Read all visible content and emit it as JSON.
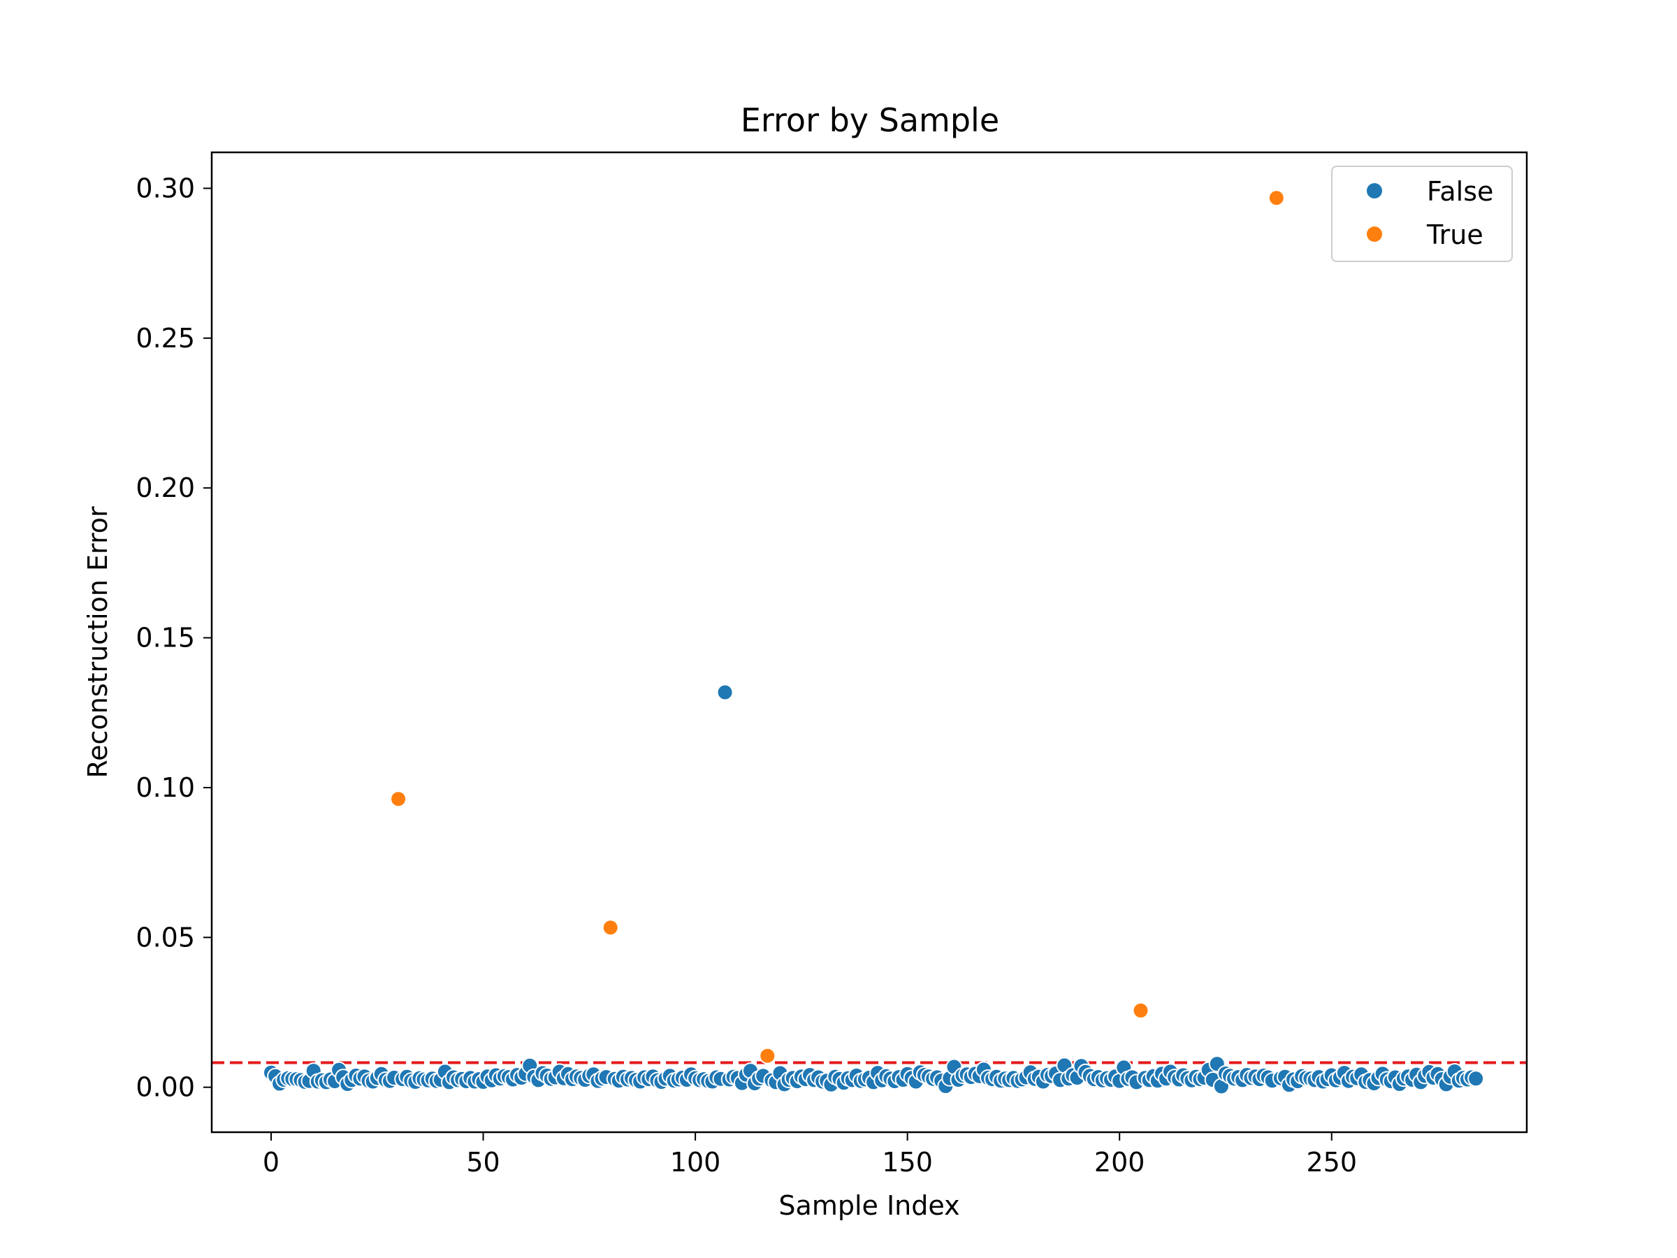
{
  "chart_data": {
    "type": "scatter",
    "title": "Error by Sample",
    "xlabel": "Sample Index",
    "ylabel": "Reconstruction Error",
    "xlim": [
      -14,
      296
    ],
    "ylim": [
      -0.015,
      0.312
    ],
    "x_ticks": [
      0,
      50,
      100,
      150,
      200,
      250
    ],
    "x_tick_labels": [
      "0",
      "50",
      "100",
      "150",
      "200",
      "250"
    ],
    "y_ticks": [
      0.0,
      0.05,
      0.1,
      0.15,
      0.2,
      0.25,
      0.3
    ],
    "y_tick_labels": [
      "0.00",
      "0.05",
      "0.10",
      "0.15",
      "0.20",
      "0.25",
      "0.30"
    ],
    "threshold": {
      "value": 0.0082,
      "color": "#e41a1c",
      "style": "dashed"
    },
    "legend": {
      "position": "top-right"
    },
    "grid": false,
    "series": [
      {
        "name": "False",
        "color": "#1f77b4",
        "points": [
          [
            0,
            0.0049
          ],
          [
            1,
            0.0037
          ],
          [
            2,
            0.0012
          ],
          [
            3,
            0.0025
          ],
          [
            4,
            0.003
          ],
          [
            5,
            0.0028
          ],
          [
            6,
            0.0027
          ],
          [
            7,
            0.0024
          ],
          [
            8,
            0.0018
          ],
          [
            9,
            0.0021
          ],
          [
            10,
            0.0055
          ],
          [
            11,
            0.0019
          ],
          [
            12,
            0.0023
          ],
          [
            13,
            0.0017
          ],
          [
            14,
            0.0026
          ],
          [
            15,
            0.002
          ],
          [
            16,
            0.0058
          ],
          [
            17,
            0.0034
          ],
          [
            18,
            0.0011
          ],
          [
            19,
            0.0024
          ],
          [
            20,
            0.0039
          ],
          [
            21,
            0.0029
          ],
          [
            22,
            0.0036
          ],
          [
            23,
            0.0022
          ],
          [
            24,
            0.0019
          ],
          [
            25,
            0.0031
          ],
          [
            26,
            0.0044
          ],
          [
            27,
            0.0025
          ],
          [
            28,
            0.0021
          ],
          [
            29,
            0.0032
          ],
          [
            31,
            0.0027
          ],
          [
            32,
            0.0035
          ],
          [
            33,
            0.0022
          ],
          [
            34,
            0.0018
          ],
          [
            35,
            0.003
          ],
          [
            36,
            0.0026
          ],
          [
            37,
            0.0023
          ],
          [
            38,
            0.0029
          ],
          [
            39,
            0.0021
          ],
          [
            40,
            0.0025
          ],
          [
            41,
            0.0052
          ],
          [
            42,
            0.0017
          ],
          [
            43,
            0.0033
          ],
          [
            44,
            0.0024
          ],
          [
            45,
            0.0028
          ],
          [
            46,
            0.002
          ],
          [
            47,
            0.0031
          ],
          [
            48,
            0.0019
          ],
          [
            49,
            0.0027
          ],
          [
            50,
            0.0018
          ],
          [
            51,
            0.0036
          ],
          [
            52,
            0.0023
          ],
          [
            53,
            0.004
          ],
          [
            54,
            0.0029
          ],
          [
            55,
            0.0037
          ],
          [
            56,
            0.0034
          ],
          [
            57,
            0.0026
          ],
          [
            58,
            0.0041
          ],
          [
            59,
            0.0032
          ],
          [
            60,
            0.0045
          ],
          [
            61,
            0.0072
          ],
          [
            62,
            0.0035
          ],
          [
            63,
            0.0024
          ],
          [
            64,
            0.0047
          ],
          [
            65,
            0.0039
          ],
          [
            66,
            0.0028
          ],
          [
            67,
            0.0033
          ],
          [
            68,
            0.0052
          ],
          [
            69,
            0.003
          ],
          [
            70,
            0.0044
          ],
          [
            71,
            0.0027
          ],
          [
            72,
            0.0036
          ],
          [
            73,
            0.0031
          ],
          [
            74,
            0.0025
          ],
          [
            75,
            0.0038
          ],
          [
            76,
            0.0043
          ],
          [
            77,
            0.0021
          ],
          [
            78,
            0.0029
          ],
          [
            79,
            0.0034
          ],
          [
            81,
            0.0028
          ],
          [
            82,
            0.0022
          ],
          [
            83,
            0.0035
          ],
          [
            84,
            0.0026
          ],
          [
            85,
            0.0031
          ],
          [
            86,
            0.0024
          ],
          [
            87,
            0.0019
          ],
          [
            88,
            0.0033
          ],
          [
            89,
            0.0027
          ],
          [
            90,
            0.0036
          ],
          [
            91,
            0.0023
          ],
          [
            92,
            0.0018
          ],
          [
            93,
            0.0029
          ],
          [
            94,
            0.0038
          ],
          [
            95,
            0.0022
          ],
          [
            96,
            0.0026
          ],
          [
            97,
            0.0032
          ],
          [
            98,
            0.0025
          ],
          [
            99,
            0.0043
          ],
          [
            100,
            0.003
          ],
          [
            101,
            0.0024
          ],
          [
            102,
            0.0027
          ],
          [
            103,
            0.0021
          ],
          [
            104,
            0.0019
          ],
          [
            105,
            0.0033
          ],
          [
            106,
            0.0028
          ],
          [
            107,
            0.1318
          ],
          [
            108,
            0.0026
          ],
          [
            109,
            0.0035
          ],
          [
            110,
            0.0031
          ],
          [
            111,
            0.0014
          ],
          [
            112,
            0.0042
          ],
          [
            113,
            0.0055
          ],
          [
            114,
            0.0013
          ],
          [
            115,
            0.0029
          ],
          [
            116,
            0.0038
          ],
          [
            118,
            0.0023
          ],
          [
            119,
            0.0017
          ],
          [
            120,
            0.0047
          ],
          [
            121,
            0.001
          ],
          [
            122,
            0.0025
          ],
          [
            123,
            0.0031
          ],
          [
            124,
            0.002
          ],
          [
            125,
            0.0036
          ],
          [
            126,
            0.0027
          ],
          [
            127,
            0.0041
          ],
          [
            128,
            0.0024
          ],
          [
            129,
            0.0033
          ],
          [
            130,
            0.0019
          ],
          [
            131,
            0.0022
          ],
          [
            132,
            0.0009
          ],
          [
            133,
            0.0035
          ],
          [
            134,
            0.0028
          ],
          [
            135,
            0.0015
          ],
          [
            136,
            0.003
          ],
          [
            137,
            0.0024
          ],
          [
            138,
            0.0039
          ],
          [
            139,
            0.0021
          ],
          [
            140,
            0.0026
          ],
          [
            141,
            0.0032
          ],
          [
            142,
            0.0017
          ],
          [
            143,
            0.0048
          ],
          [
            144,
            0.0023
          ],
          [
            145,
            0.0037
          ],
          [
            146,
            0.0029
          ],
          [
            147,
            0.002
          ],
          [
            148,
            0.0034
          ],
          [
            149,
            0.0025
          ],
          [
            150,
            0.0044
          ],
          [
            151,
            0.0031
          ],
          [
            152,
            0.0019
          ],
          [
            153,
            0.005
          ],
          [
            154,
            0.0041
          ],
          [
            155,
            0.0036
          ],
          [
            156,
            0.0028
          ],
          [
            157,
            0.0033
          ],
          [
            158,
            0.0022
          ],
          [
            159,
            0.0004
          ],
          [
            160,
            0.003
          ],
          [
            161,
            0.0068
          ],
          [
            162,
            0.0025
          ],
          [
            163,
            0.0039
          ],
          [
            164,
            0.0043
          ],
          [
            165,
            0.0034
          ],
          [
            166,
            0.0045
          ],
          [
            167,
            0.0037
          ],
          [
            168,
            0.0059
          ],
          [
            169,
            0.0032
          ],
          [
            170,
            0.0027
          ],
          [
            171,
            0.0035
          ],
          [
            172,
            0.0022
          ],
          [
            173,
            0.0029
          ],
          [
            174,
            0.0024
          ],
          [
            175,
            0.0031
          ],
          [
            176,
            0.0021
          ],
          [
            177,
            0.0026
          ],
          [
            178,
            0.0033
          ],
          [
            179,
            0.005
          ],
          [
            180,
            0.0028
          ],
          [
            181,
            0.0035
          ],
          [
            182,
            0.0019
          ],
          [
            183,
            0.0041
          ],
          [
            184,
            0.0037
          ],
          [
            185,
            0.0046
          ],
          [
            186,
            0.0024
          ],
          [
            187,
            0.0073
          ],
          [
            188,
            0.0029
          ],
          [
            189,
            0.004
          ],
          [
            190,
            0.0032
          ],
          [
            191,
            0.0071
          ],
          [
            192,
            0.0051
          ],
          [
            193,
            0.0038
          ],
          [
            194,
            0.0027
          ],
          [
            195,
            0.0034
          ],
          [
            196,
            0.0023
          ],
          [
            197,
            0.003
          ],
          [
            198,
            0.0025
          ],
          [
            199,
            0.0036
          ],
          [
            200,
            0.0021
          ],
          [
            201,
            0.0066
          ],
          [
            202,
            0.0028
          ],
          [
            203,
            0.0033
          ],
          [
            204,
            0.0017
          ],
          [
            206,
            0.0031
          ],
          [
            207,
            0.0024
          ],
          [
            208,
            0.0037
          ],
          [
            209,
            0.0022
          ],
          [
            210,
            0.0045
          ],
          [
            211,
            0.0029
          ],
          [
            212,
            0.0052
          ],
          [
            213,
            0.0034
          ],
          [
            214,
            0.0026
          ],
          [
            215,
            0.004
          ],
          [
            216,
            0.003
          ],
          [
            217,
            0.0023
          ],
          [
            218,
            0.0035
          ],
          [
            219,
            0.0027
          ],
          [
            220,
            0.0032
          ],
          [
            221,
            0.0058
          ],
          [
            222,
            0.0025
          ],
          [
            223,
            0.0078
          ],
          [
            224,
            0.0003
          ],
          [
            225,
            0.0046
          ],
          [
            226,
            0.0038
          ],
          [
            227,
            0.0029
          ],
          [
            228,
            0.0034
          ],
          [
            229,
            0.0024
          ],
          [
            230,
            0.0041
          ],
          [
            231,
            0.0031
          ],
          [
            232,
            0.0036
          ],
          [
            233,
            0.0027
          ],
          [
            234,
            0.0039
          ],
          [
            235,
            0.0033
          ],
          [
            236,
            0.0022
          ],
          [
            238,
            0.003
          ],
          [
            239,
            0.0035
          ],
          [
            240,
            0.0008
          ],
          [
            241,
            0.0026
          ],
          [
            242,
            0.002
          ],
          [
            243,
            0.0037
          ],
          [
            244,
            0.0031
          ],
          [
            245,
            0.0029
          ],
          [
            246,
            0.0024
          ],
          [
            247,
            0.0034
          ],
          [
            248,
            0.0019
          ],
          [
            249,
            0.0027
          ],
          [
            250,
            0.004
          ],
          [
            251,
            0.0023
          ],
          [
            252,
            0.0032
          ],
          [
            253,
            0.0048
          ],
          [
            254,
            0.0021
          ],
          [
            255,
            0.0035
          ],
          [
            256,
            0.003
          ],
          [
            257,
            0.0043
          ],
          [
            258,
            0.0018
          ],
          [
            259,
            0.0024
          ],
          [
            260,
            0.0013
          ],
          [
            261,
            0.0031
          ],
          [
            262,
            0.0045
          ],
          [
            263,
            0.0026
          ],
          [
            264,
            0.002
          ],
          [
            265,
            0.0033
          ],
          [
            266,
            0.0011
          ],
          [
            267,
            0.0029
          ],
          [
            268,
            0.0036
          ],
          [
            269,
            0.0025
          ],
          [
            270,
            0.0042
          ],
          [
            271,
            0.0017
          ],
          [
            272,
            0.0038
          ],
          [
            273,
            0.0051
          ],
          [
            274,
            0.0032
          ],
          [
            275,
            0.0044
          ],
          [
            276,
            0.0027
          ],
          [
            277,
            0.001
          ],
          [
            278,
            0.0035
          ],
          [
            279,
            0.0053
          ],
          [
            280,
            0.0022
          ],
          [
            281,
            0.0031
          ],
          [
            282,
            0.0026
          ],
          [
            283,
            0.0033
          ],
          [
            284,
            0.0029
          ]
        ]
      },
      {
        "name": "True",
        "color": "#ff7f0e",
        "points": [
          [
            30,
            0.0962
          ],
          [
            80,
            0.0533
          ],
          [
            117,
            0.0105
          ],
          [
            205,
            0.0256
          ],
          [
            237,
            0.2968
          ]
        ]
      }
    ]
  }
}
